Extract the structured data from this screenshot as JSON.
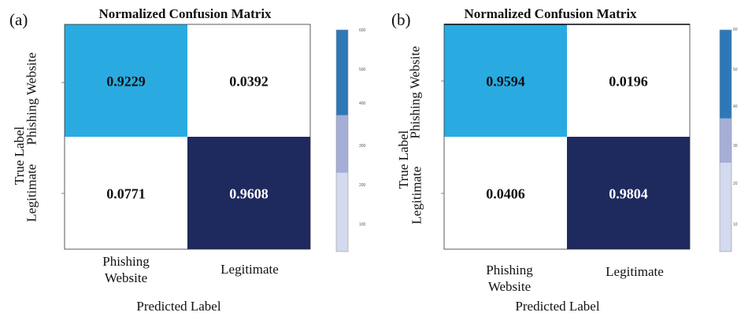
{
  "figure": {
    "panel_a_label": "(a)",
    "panel_b_label": "(b)"
  },
  "chart_data": [
    {
      "type": "heatmap",
      "title": "Normalized Confusion Matrix",
      "xlabel": "Predicted Label",
      "ylabel": "True Label",
      "x_tick_labels": [
        "Phishing\nWebsite",
        "Legitimate"
      ],
      "y_tick_labels": [
        "Phishing\nWebsite",
        "Legitimate"
      ],
      "matrix": [
        [
          0.9229,
          0.0392
        ],
        [
          0.0771,
          0.9608
        ]
      ],
      "cell_text": [
        [
          "0.9229",
          "0.0392"
        ],
        [
          "0.0771",
          "0.9608"
        ]
      ],
      "cell_colors": [
        [
          "#29abe2",
          "#ffffff"
        ],
        [
          "#ffffff",
          "#1e2a5e"
        ]
      ],
      "cell_text_colors": [
        [
          "#111111",
          "#111111"
        ],
        [
          "#111111",
          "#ffffff"
        ]
      ],
      "colorbar": {
        "ticks": [
          "600",
          "500",
          "400",
          "300",
          "200",
          "100"
        ],
        "bands": [
          "#2e78b7",
          "#a5aed6",
          "#d3d9ee"
        ],
        "band_fractions": [
          0.385,
          0.26,
          0.355
        ]
      },
      "grid": false
    },
    {
      "type": "heatmap",
      "title": "Normalized Confusion Matrix",
      "xlabel": "Predicted Label",
      "ylabel": "True Label",
      "x_tick_labels": [
        "Phishing\nWebsite",
        "Legitimate"
      ],
      "y_tick_labels": [
        "Phishing\nWebsite",
        "Legitimate"
      ],
      "matrix": [
        [
          0.9594,
          0.0196
        ],
        [
          0.0406,
          0.9804
        ]
      ],
      "cell_text": [
        [
          "0.9594",
          "0.0196"
        ],
        [
          "0.0406",
          "0.9804"
        ]
      ],
      "cell_colors": [
        [
          "#29abe2",
          "#ffffff"
        ],
        [
          "#ffffff",
          "#1e2a5e"
        ]
      ],
      "cell_text_colors": [
        [
          "#111111",
          "#111111"
        ],
        [
          "#111111",
          "#ffffff"
        ]
      ],
      "colorbar": {
        "ticks": [
          "60",
          "50",
          "40",
          "30",
          "20",
          "10"
        ],
        "bands": [
          "#2e78b7",
          "#a5aed6",
          "#d3d9ee"
        ],
        "band_fractions": [
          0.4,
          0.2,
          0.4
        ]
      },
      "grid": false
    }
  ]
}
